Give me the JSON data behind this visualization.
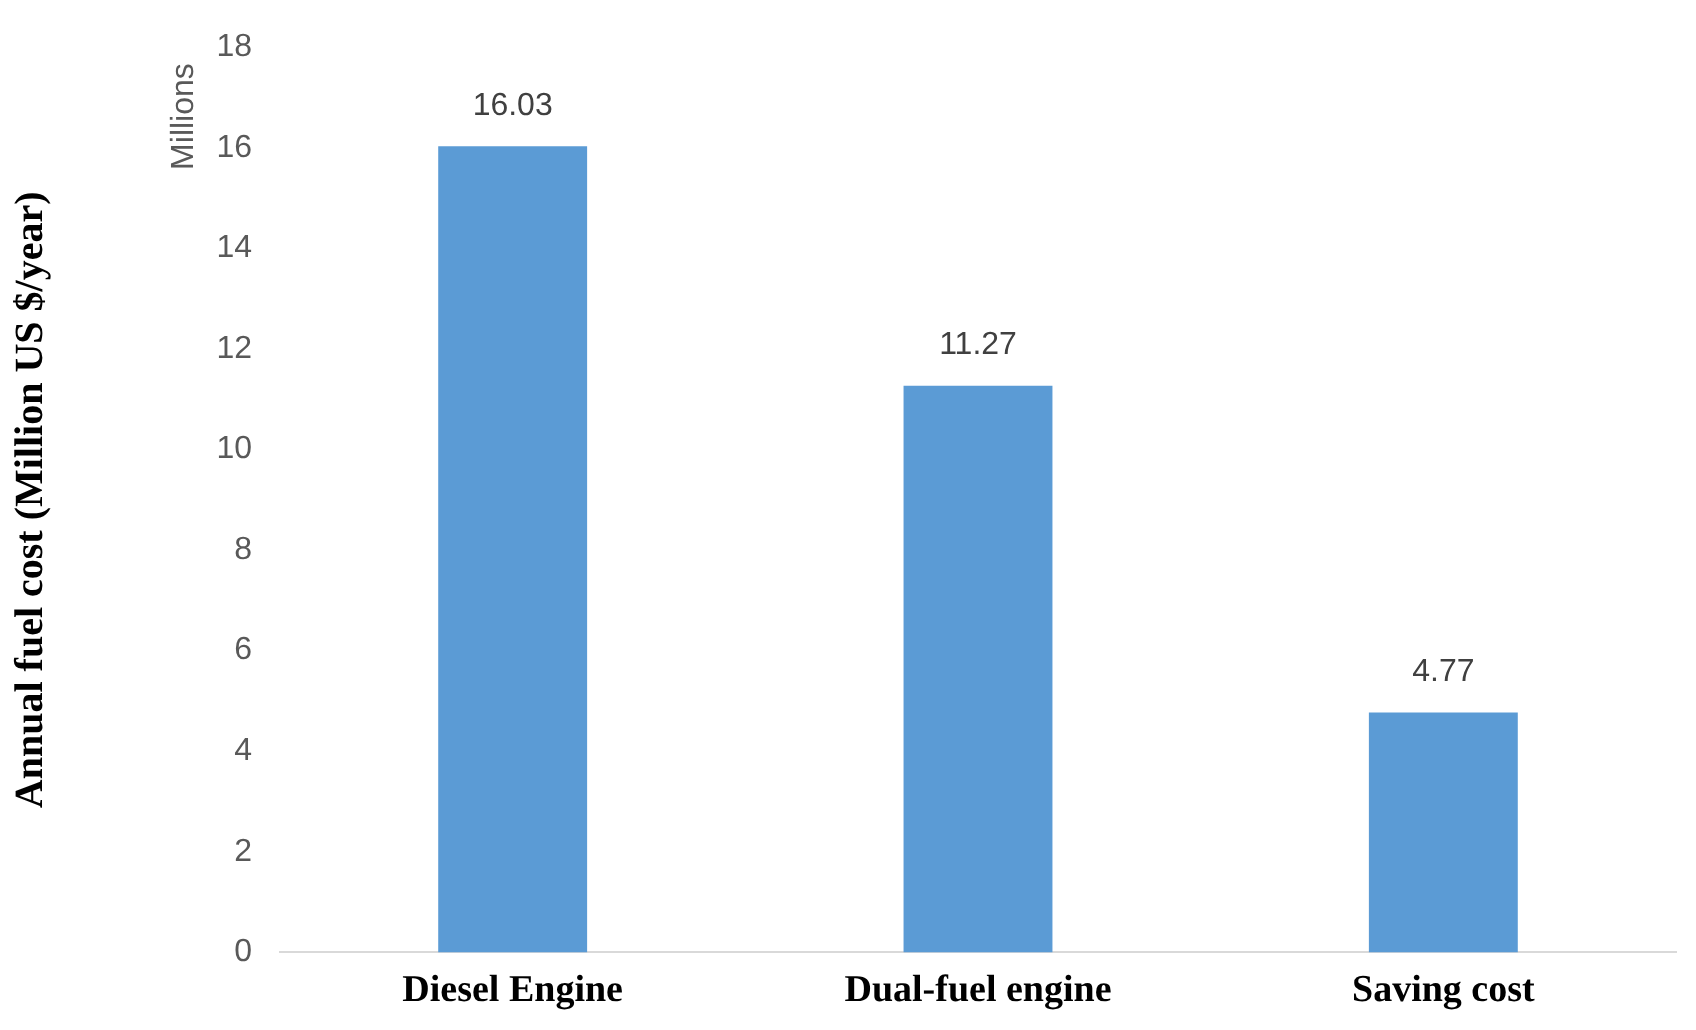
{
  "chart_data": {
    "type": "bar",
    "ylabel": "Annual fuel cost (Million US $/year)",
    "annotations": [
      "Millions"
    ],
    "categories": [
      "Diesel Engine",
      "Dual-fuel engine",
      "Saving cost"
    ],
    "values": [
      16.03,
      11.27,
      4.77
    ],
    "color": "#5b9bd5",
    "ylim": [
      0,
      18
    ],
    "yticks": [
      0,
      2,
      4,
      6,
      8,
      10,
      12,
      14,
      16,
      18
    ],
    "grid": false,
    "data_labels": true
  }
}
